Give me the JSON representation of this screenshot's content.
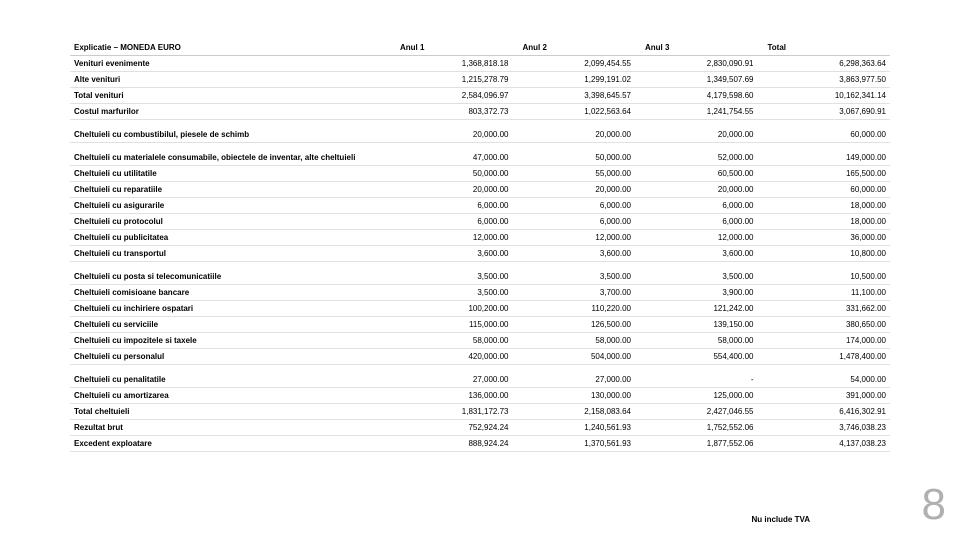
{
  "page_number": "8",
  "footnote": "Nu include TVA",
  "table": {
    "headers": [
      "Explicatie – MONEDA EURO",
      "Anul 1",
      "Anul 2",
      "Anul 3",
      "Total"
    ],
    "rows": [
      {
        "label": "Venituri evenimente",
        "a1": "1,368,818.18",
        "a2": "2,099,454.55",
        "a3": "2,830,090.91",
        "total": "6,298,363.64",
        "spaced": false
      },
      {
        "label": "Alte venituri",
        "a1": "1,215,278.79",
        "a2": "1,299,191.02",
        "a3": "1,349,507.69",
        "total": "3,863,977.50",
        "spaced": false
      },
      {
        "label": "Total venituri",
        "a1": "2,584,096.97",
        "a2": "3,398,645.57",
        "a3": "4,179,598.60",
        "total": "10,162,341.14",
        "spaced": false
      },
      {
        "label": "Costul marfurilor",
        "a1": "803,372.73",
        "a2": "1,022,563.64",
        "a3": "1,241,754.55",
        "total": "3,067,690.91",
        "spaced": false
      },
      {
        "label": "Cheltuieli cu combustibilul, piesele de schimb",
        "a1": "20,000.00",
        "a2": "20,000.00",
        "a3": "20,000.00",
        "total": "60,000.00",
        "spaced": true
      },
      {
        "label": "Cheltuieli cu materialele consumabile, obiectele de inventar, alte cheltuieli",
        "a1": "47,000.00",
        "a2": "50,000.00",
        "a3": "52,000.00",
        "total": "149,000.00",
        "spaced": true
      },
      {
        "label": "Cheltuieli cu utilitatile",
        "a1": "50,000.00",
        "a2": "55,000.00",
        "a3": "60,500.00",
        "total": "165,500.00",
        "spaced": false
      },
      {
        "label": "Cheltuieli cu reparatiile",
        "a1": "20,000.00",
        "a2": "20,000.00",
        "a3": "20,000.00",
        "total": "60,000.00",
        "spaced": false
      },
      {
        "label": "Cheltuieli cu asigurarile",
        "a1": "6,000.00",
        "a2": "6,000.00",
        "a3": "6,000.00",
        "total": "18,000.00",
        "spaced": false
      },
      {
        "label": "Cheltuieli cu protocolul",
        "a1": "6,000.00",
        "a2": "6,000.00",
        "a3": "6,000.00",
        "total": "18,000.00",
        "spaced": false
      },
      {
        "label": "Cheltuieli cu publicitatea",
        "a1": "12,000.00",
        "a2": "12,000.00",
        "a3": "12,000.00",
        "total": "36,000.00",
        "spaced": false
      },
      {
        "label": "Cheltuieli cu transportul",
        "a1": "3,600.00",
        "a2": "3,600.00",
        "a3": "3,600.00",
        "total": "10,800.00",
        "spaced": false
      },
      {
        "label": "Cheltuieli cu posta si telecomunicatiile",
        "a1": "3,500.00",
        "a2": "3,500.00",
        "a3": "3,500.00",
        "total": "10,500.00",
        "spaced": true
      },
      {
        "label": "Cheltuieli comisioane bancare",
        "a1": "3,500.00",
        "a2": "3,700.00",
        "a3": "3,900.00",
        "total": "11,100.00",
        "spaced": false
      },
      {
        "label": "Cheltuieli cu inchiriere ospatari",
        "a1": "100,200.00",
        "a2": "110,220.00",
        "a3": "121,242.00",
        "total": "331,662.00",
        "spaced": false
      },
      {
        "label": "Cheltuieli cu serviciile",
        "a1": "115,000.00",
        "a2": "126,500.00",
        "a3": "139,150.00",
        "total": "380,650.00",
        "spaced": false
      },
      {
        "label": "Cheltuieli cu impozitele si taxele",
        "a1": "58,000.00",
        "a2": "58,000.00",
        "a3": "58,000.00",
        "total": "174,000.00",
        "spaced": false
      },
      {
        "label": "Cheltuieli cu personalul",
        "a1": "420,000.00",
        "a2": "504,000.00",
        "a3": "554,400.00",
        "total": "1,478,400.00",
        "spaced": false
      },
      {
        "label": "Cheltuieli cu penalitatile",
        "a1": "27,000.00",
        "a2": "27,000.00",
        "a3": "-",
        "total": "54,000.00",
        "spaced": true
      },
      {
        "label": "Cheltuieli cu amortizarea",
        "a1": "136,000.00",
        "a2": "130,000.00",
        "a3": "125,000.00",
        "total": "391,000.00",
        "spaced": false
      },
      {
        "label": "Total cheltuieli",
        "a1": "1,831,172.73",
        "a2": "2,158,083.64",
        "a3": "2,427,046.55",
        "total": "6,416,302.91",
        "spaced": false
      },
      {
        "label": "Rezultat brut",
        "a1": "752,924.24",
        "a2": "1,240,561.93",
        "a3": "1,752,552.06",
        "total": "3,746,038.23",
        "spaced": false
      },
      {
        "label": "Excedent exploatare",
        "a1": "888,924.24",
        "a2": "1,370,561.93",
        "a3": "1,877,552.06",
        "total": "4,137,038.23",
        "spaced": false
      }
    ]
  }
}
